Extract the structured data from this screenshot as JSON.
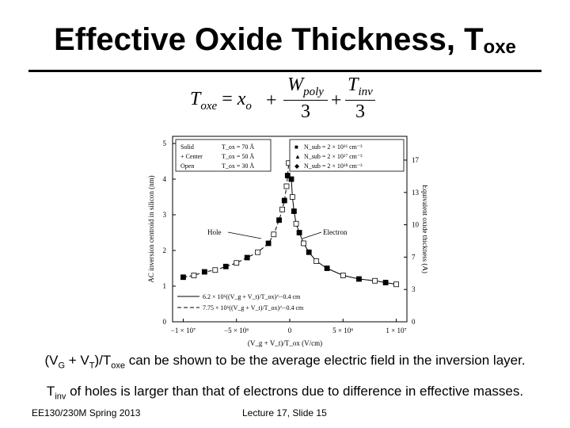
{
  "slide": {
    "title": {
      "main": "Effective Oxide Thickness, T",
      "sub": "oxe"
    },
    "equation": {
      "lhs": "T",
      "lhs_sub": "oxe",
      "eq_sign": "=",
      "x": "x",
      "x_sub": "o",
      "plus": "+",
      "frac1_num": "W",
      "frac1_sub": "poly",
      "frac1_den": "3",
      "frac2_num": "T",
      "frac2_sub": "inv",
      "frac2_den": "3"
    },
    "line1": {
      "p1": "(V",
      "s1": "G",
      "p2": " + V",
      "s2": "T",
      "p3": ")/T",
      "s3": "oxe",
      "p4": " can be shown to be the average electric field in the inversion layer."
    },
    "line2": {
      "p1": "T",
      "s1": "inv",
      "p2": " of holes is larger than that of electrons due to difference in effective masses."
    },
    "footer_left": "EE130/230M Spring 2013",
    "footer_center": "Lecture 17, Slide 15"
  },
  "chart_data": {
    "type": "scatter",
    "ylabel": "AC inversion centroid in silicon (nm)",
    "y2label": "Equivalent oxide thickness (Å)",
    "xlabel": "(V_g + V_t)/T_ox (V/cm)",
    "x_ticks": [
      "−1 × 10⁷",
      "−5 × 10⁶",
      "0",
      "5 × 10⁶",
      "1 × 10⁷"
    ],
    "xlim": [
      -11000000,
      11000000
    ],
    "y_ticks": [
      "0",
      "1",
      "2",
      "3",
      "4",
      "5"
    ],
    "ylim": [
      0,
      5.2
    ],
    "y2_ticks": [
      "0",
      "3",
      "7",
      "10",
      "13",
      "17"
    ],
    "legend_left": [
      {
        "style": "Solid",
        "tox": "T_ox = 70 Å"
      },
      {
        "style": "+ Center",
        "tox": "T_ox = 50 Å"
      },
      {
        "style": "Open",
        "tox": "T_ox = 30 Å"
      }
    ],
    "legend_right": [
      {
        "marker": "■",
        "nsub": "N_sub = 2 × 10¹⁶ cm⁻³"
      },
      {
        "marker": "▲",
        "nsub": "N_sub = 2 × 10¹⁷ cm⁻³"
      },
      {
        "marker": "◆",
        "nsub": "N_sub = 2 × 10¹⁸ cm⁻³"
      }
    ],
    "annotations": [
      "Hole",
      "Electron"
    ],
    "fit_legend": [
      "6.2 × 10⁶((V_g + V_t)/T_ox)^−0.4 cm",
      "7.75 × 10⁶((V_g + V_t)/T_ox)^−0.4 cm"
    ],
    "series": [
      {
        "name": "Hole",
        "x": [
          -10000000,
          -9000000,
          -8000000,
          -7000000,
          -6000000,
          -5000000,
          -4000000,
          -3000000,
          -2000000,
          -1500000,
          -1000000,
          -700000,
          -500000,
          -300000,
          -200000,
          -100000
        ],
        "y": [
          1.25,
          1.3,
          1.4,
          1.45,
          1.55,
          1.65,
          1.8,
          1.95,
          2.2,
          2.45,
          2.85,
          3.15,
          3.4,
          3.8,
          4.1,
          4.45
        ]
      },
      {
        "name": "Electron",
        "x": [
          150000,
          250000,
          400000,
          600000,
          900000,
          1300000,
          1800000,
          2500000,
          3500000,
          5000000,
          6500000,
          8000000,
          9000000,
          10000000
        ],
        "y": [
          4.0,
          3.5,
          3.1,
          2.75,
          2.5,
          2.2,
          1.95,
          1.7,
          1.5,
          1.3,
          1.2,
          1.15,
          1.1,
          1.05
        ]
      }
    ]
  }
}
